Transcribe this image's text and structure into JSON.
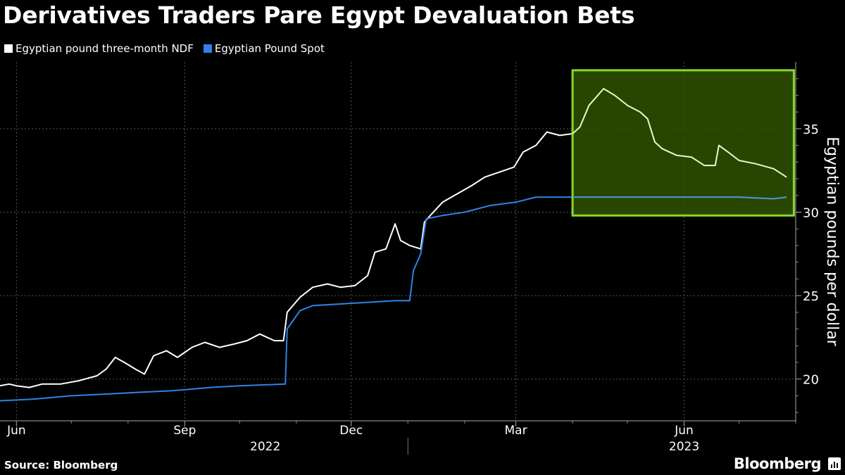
{
  "header": {
    "title": "Derivatives Traders Pare Egypt Devaluation Bets"
  },
  "footer": {
    "source": "Source: Bloomberg",
    "brand": "Bloomberg"
  },
  "colors": {
    "ndf": "#ffffff",
    "spot": "#2f83e8",
    "highlight_fill": "#2f5200",
    "highlight_border": "#8ad82a",
    "grid": "#555555"
  },
  "chart_data": {
    "type": "line",
    "title": "Derivatives Traders Pare Egypt Devaluation Bets",
    "ylabel": "Egyptian pounds per dollar",
    "xlabel": "",
    "ylim": [
      17.5,
      39
    ],
    "xlim": [
      "2022-05-23",
      "2023-08-01"
    ],
    "yticks": [
      20,
      25,
      30,
      35
    ],
    "month_labels": [
      {
        "date": "2022-06-01",
        "label": "Jun"
      },
      {
        "date": "2022-09-01",
        "label": "Sep"
      },
      {
        "date": "2022-12-01",
        "label": "Dec"
      },
      {
        "date": "2023-03-01",
        "label": "Mar"
      },
      {
        "date": "2023-06-01",
        "label": "Jun"
      }
    ],
    "year_labels": [
      {
        "date": "2022-10-15",
        "label": "2022"
      },
      {
        "date": "2023-06-01",
        "label": "2023"
      }
    ],
    "grid": true,
    "legend_position": "top-left",
    "highlight": {
      "x_from": "2023-04-01",
      "x_to": "2023-07-31",
      "y_from": 29.8,
      "y_to": 38.5
    },
    "series": [
      {
        "name": "Egyptian pound three-month NDF",
        "points": [
          [
            "2022-05-23",
            19.6
          ],
          [
            "2022-05-28",
            19.7
          ],
          [
            "2022-06-01",
            19.6
          ],
          [
            "2022-06-08",
            19.5
          ],
          [
            "2022-06-15",
            19.7
          ],
          [
            "2022-06-25",
            19.7
          ],
          [
            "2022-07-05",
            19.9
          ],
          [
            "2022-07-15",
            20.2
          ],
          [
            "2022-07-20",
            20.6
          ],
          [
            "2022-07-25",
            21.3
          ],
          [
            "2022-07-30",
            21.0
          ],
          [
            "2022-08-05",
            20.6
          ],
          [
            "2022-08-10",
            20.3
          ],
          [
            "2022-08-15",
            21.4
          ],
          [
            "2022-08-22",
            21.7
          ],
          [
            "2022-08-28",
            21.3
          ],
          [
            "2022-09-05",
            21.9
          ],
          [
            "2022-09-12",
            22.2
          ],
          [
            "2022-09-20",
            21.9
          ],
          [
            "2022-09-28",
            22.1
          ],
          [
            "2022-10-05",
            22.3
          ],
          [
            "2022-10-12",
            22.7
          ],
          [
            "2022-10-20",
            22.3
          ],
          [
            "2022-10-25",
            22.3
          ],
          [
            "2022-10-27",
            24.0
          ],
          [
            "2022-11-03",
            24.9
          ],
          [
            "2022-11-10",
            25.5
          ],
          [
            "2022-11-18",
            25.7
          ],
          [
            "2022-11-25",
            25.5
          ],
          [
            "2022-12-03",
            25.6
          ],
          [
            "2022-12-10",
            26.2
          ],
          [
            "2022-12-14",
            27.6
          ],
          [
            "2022-12-20",
            27.8
          ],
          [
            "2022-12-25",
            29.3
          ],
          [
            "2022-12-28",
            28.3
          ],
          [
            "2023-01-02",
            28.0
          ],
          [
            "2023-01-08",
            27.8
          ],
          [
            "2023-01-10",
            29.4
          ],
          [
            "2023-01-14",
            29.9
          ],
          [
            "2023-01-20",
            30.6
          ],
          [
            "2023-01-28",
            31.1
          ],
          [
            "2023-02-05",
            31.6
          ],
          [
            "2023-02-12",
            32.1
          ],
          [
            "2023-02-20",
            32.4
          ],
          [
            "2023-02-28",
            32.7
          ],
          [
            "2023-03-05",
            33.6
          ],
          [
            "2023-03-12",
            34.0
          ],
          [
            "2023-03-18",
            34.8
          ],
          [
            "2023-03-25",
            34.6
          ],
          [
            "2023-04-01",
            34.7
          ],
          [
            "2023-04-05",
            35.1
          ],
          [
            "2023-04-10",
            36.4
          ],
          [
            "2023-04-18",
            37.4
          ],
          [
            "2023-04-24",
            37.0
          ],
          [
            "2023-05-01",
            36.4
          ],
          [
            "2023-05-08",
            36.0
          ],
          [
            "2023-05-12",
            35.6
          ],
          [
            "2023-05-16",
            34.2
          ],
          [
            "2023-05-20",
            33.8
          ],
          [
            "2023-05-28",
            33.4
          ],
          [
            "2023-06-05",
            33.3
          ],
          [
            "2023-06-12",
            32.8
          ],
          [
            "2023-06-18",
            32.8
          ],
          [
            "2023-06-20",
            34.0
          ],
          [
            "2023-06-25",
            33.6
          ],
          [
            "2023-07-01",
            33.1
          ],
          [
            "2023-07-10",
            32.9
          ],
          [
            "2023-07-20",
            32.6
          ],
          [
            "2023-07-27",
            32.1
          ]
        ]
      },
      {
        "name": "Egyptian Pound Spot",
        "points": [
          [
            "2022-05-23",
            18.7
          ],
          [
            "2022-06-10",
            18.8
          ],
          [
            "2022-07-01",
            19.0
          ],
          [
            "2022-07-20",
            19.1
          ],
          [
            "2022-08-05",
            19.2
          ],
          [
            "2022-08-25",
            19.3
          ],
          [
            "2022-09-15",
            19.5
          ],
          [
            "2022-10-01",
            19.6
          ],
          [
            "2022-10-26",
            19.7
          ],
          [
            "2022-10-27",
            23.0
          ],
          [
            "2022-11-03",
            24.1
          ],
          [
            "2022-11-10",
            24.4
          ],
          [
            "2022-11-25",
            24.5
          ],
          [
            "2022-12-10",
            24.6
          ],
          [
            "2022-12-25",
            24.7
          ],
          [
            "2023-01-02",
            24.7
          ],
          [
            "2023-01-04",
            26.5
          ],
          [
            "2023-01-08",
            27.5
          ],
          [
            "2023-01-11",
            29.6
          ],
          [
            "2023-01-20",
            29.8
          ],
          [
            "2023-02-01",
            30.0
          ],
          [
            "2023-02-15",
            30.4
          ],
          [
            "2023-03-01",
            30.6
          ],
          [
            "2023-03-12",
            30.9
          ],
          [
            "2023-04-01",
            30.9
          ],
          [
            "2023-05-01",
            30.9
          ],
          [
            "2023-06-01",
            30.9
          ],
          [
            "2023-07-01",
            30.9
          ],
          [
            "2023-07-20",
            30.8
          ],
          [
            "2023-07-27",
            30.9
          ]
        ]
      }
    ]
  }
}
